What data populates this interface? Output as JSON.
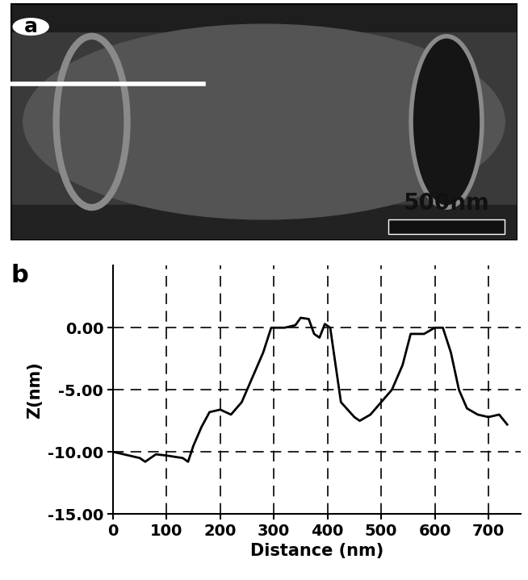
{
  "panel_a": {
    "label": "a",
    "scale_bar": "500nm"
  },
  "chart_data": {
    "type": "line",
    "title": "b",
    "x_label": "Distance (nm)",
    "y_label": "Z(nm)",
    "x": [
      0,
      20,
      50,
      60,
      80,
      100,
      130,
      140,
      150,
      165,
      180,
      200,
      220,
      240,
      260,
      280,
      295,
      320,
      340,
      350,
      365,
      375,
      385,
      395,
      405,
      415,
      425,
      450,
      460,
      480,
      500,
      520,
      540,
      555,
      580,
      600,
      615,
      630,
      645,
      660,
      680,
      700,
      720,
      735
    ],
    "values": [
      -10,
      -10.2,
      -10.5,
      -10.8,
      -10.2,
      -10.3,
      -10.5,
      -10.8,
      -9.5,
      -8,
      -6.8,
      -6.6,
      -7,
      -6,
      -4,
      -2,
      0,
      0,
      0.2,
      0.8,
      0.7,
      -0.5,
      -0.8,
      0.3,
      0,
      -3,
      -6,
      -7.2,
      -7.5,
      -7,
      -6,
      -5,
      -3,
      -0.5,
      -0.5,
      0,
      0,
      -2,
      -5,
      -6.5,
      -7,
      -7.2,
      -7,
      -7.8
    ],
    "color": "#000000",
    "xlim": [
      0,
      760
    ],
    "xticks": [
      0,
      100,
      200,
      300,
      400,
      500,
      600,
      700
    ],
    "ylim": [
      -15,
      5
    ],
    "yticks": [
      {
        "value": -15,
        "label": "-15.00"
      },
      {
        "value": -10,
        "label": "-10.00"
      },
      {
        "value": -5,
        "label": "-5.00"
      },
      {
        "value": 0,
        "label": "0.00"
      }
    ],
    "grid": true
  }
}
